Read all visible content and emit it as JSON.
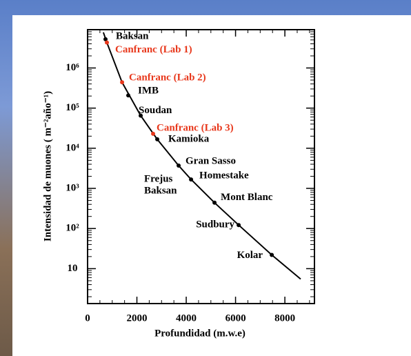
{
  "chart_data": {
    "type": "scatter-curve",
    "x_label": "Profundidad (m.w.e)",
    "y_label": "Intensidad de muones ( m⁻²año⁻¹)",
    "xlim": [
      0,
      9200
    ],
    "xticks": [
      0,
      2000,
      4000,
      6000,
      8000
    ],
    "ylim": [
      1.35,
      9000000
    ],
    "log_y": true,
    "yticks": [
      10,
      {
        "value": 100,
        "label": "10²"
      },
      {
        "value": 1000,
        "label": "10³"
      },
      {
        "value": 10000,
        "label": "10⁴"
      },
      {
        "value": 100000,
        "label": "10⁵"
      },
      {
        "value": 1000000,
        "label": "10⁶"
      }
    ],
    "points": [
      {
        "label": "Baksan",
        "x": 727,
        "y": 5200000,
        "color": "#000000"
      },
      {
        "label": "Canfranc (Lab 1)",
        "x": 783,
        "y": 4300000,
        "color": "#e8381c"
      },
      {
        "label": "Canfranc (Lab 2)",
        "x": 1399,
        "y": 440000,
        "color": "#e8381c"
      },
      {
        "label": "IMB",
        "x": 1650,
        "y": 207000,
        "color": "#000000"
      },
      {
        "label": "Soudan",
        "x": 2154,
        "y": 65000,
        "color": "#000000"
      },
      {
        "label": "Canfranc (Lab 3)",
        "x": 2657,
        "y": 23000,
        "color": "#e8381c"
      },
      {
        "label": "Kamioka",
        "x": 2825,
        "y": 16700,
        "color": "#000000"
      },
      {
        "label": "Gran Sasso",
        "x": 3692,
        "y": 3700,
        "color": "#000000"
      },
      {
        "label": "Homestake",
        "x": 4196,
        "y": 1670,
        "color": "#000000"
      },
      {
        "label": "Mont Blanc",
        "x": 5147,
        "y": 440,
        "color": "#000000"
      },
      {
        "label": "Sudbury",
        "x": 6126,
        "y": 122,
        "color": "#000000"
      },
      {
        "label": "Kolar",
        "x": 7469,
        "y": 22,
        "color": "#000000"
      }
    ],
    "annotations": [
      "Frejus",
      "Baksan"
    ],
    "curve": {
      "x": [
        640,
        783,
        1399,
        2154,
        2825,
        3692,
        4196,
        5147,
        6126,
        7469,
        8640
      ],
      "y": [
        7700000,
        4300000,
        440000,
        65000,
        16700,
        3700,
        1670,
        440,
        122,
        22,
        5.5
      ],
      "color": "#000000"
    }
  }
}
